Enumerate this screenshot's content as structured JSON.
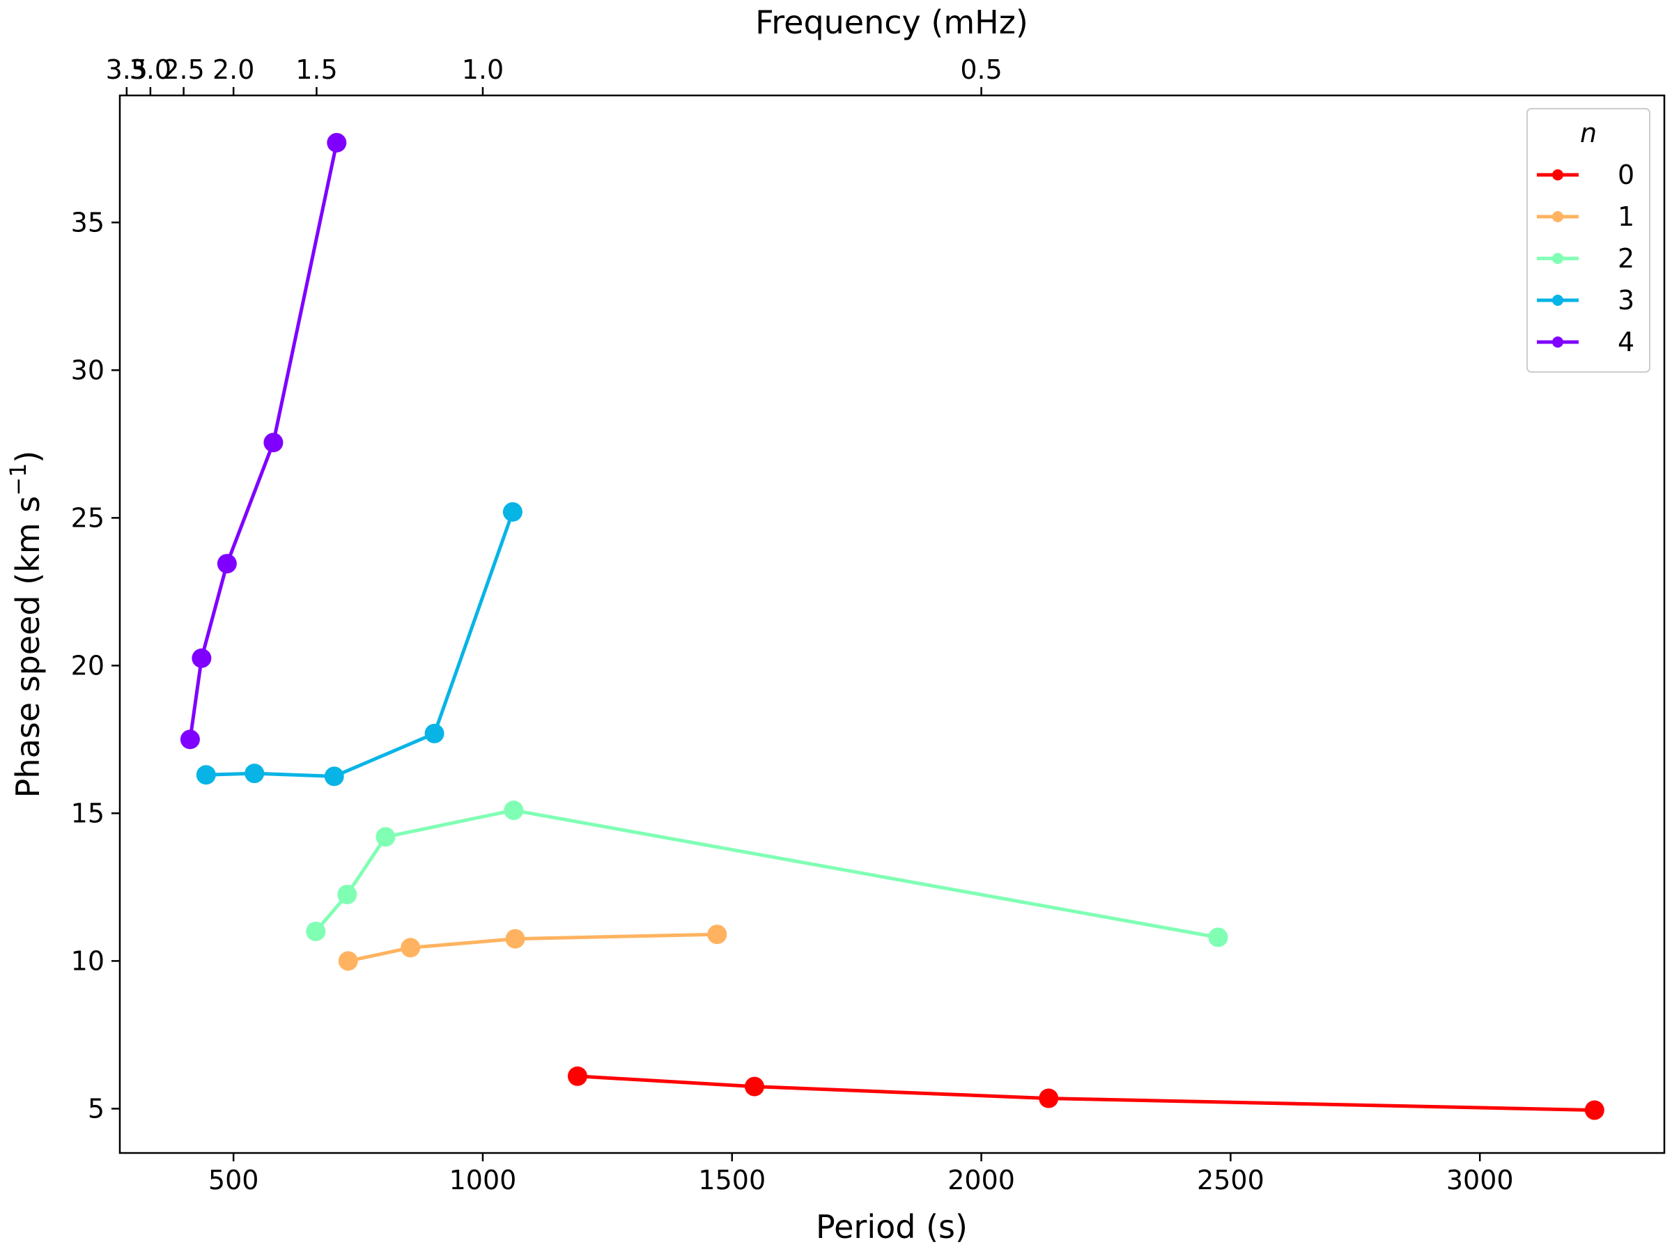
{
  "chart_data": {
    "type": "line",
    "title": "",
    "xlabel": "Period (s)",
    "ylabel_main": "Phase speed (km s",
    "ylabel_sup": "−1",
    "ylabel_close": ")",
    "top_xlabel": "Frequency (mHz)",
    "xlim": [
      272,
      3370
    ],
    "ylim": [
      3.5,
      39.3
    ],
    "x_ticks": [
      500,
      1000,
      1500,
      2000,
      2500,
      3000
    ],
    "y_ticks": [
      5,
      10,
      15,
      20,
      25,
      30,
      35
    ],
    "top_ticks": [
      {
        "label": "3.5",
        "freq_mhz": 3.5
      },
      {
        "label": "3.0",
        "freq_mhz": 3.0
      },
      {
        "label": "2.5",
        "freq_mhz": 2.5
      },
      {
        "label": "2.0",
        "freq_mhz": 2.0
      },
      {
        "label": "1.5",
        "freq_mhz": 1.5
      },
      {
        "label": "1.0",
        "freq_mhz": 1.0
      },
      {
        "label": "0.5",
        "freq_mhz": 0.5
      }
    ],
    "legend_title": "n",
    "legend_position": "top-right",
    "grid": false,
    "series": [
      {
        "name": "0",
        "color": "#ff0000",
        "x": [
          1190,
          1545,
          2135,
          3230
        ],
        "y": [
          6.1,
          5.75,
          5.35,
          4.95
        ]
      },
      {
        "name": "1",
        "color": "#ffb360",
        "x": [
          730,
          855,
          1065,
          1470
        ],
        "y": [
          10.0,
          10.45,
          10.75,
          10.9
        ]
      },
      {
        "name": "2",
        "color": "#80ffb4",
        "x": [
          665,
          728,
          805,
          1062,
          2475
        ],
        "y": [
          11.0,
          12.25,
          14.2,
          15.1,
          10.8
        ]
      },
      {
        "name": "3",
        "color": "#08b4e6",
        "x": [
          445,
          542,
          702,
          903,
          1060
        ],
        "y": [
          16.3,
          16.35,
          16.25,
          17.7,
          25.2
        ]
      },
      {
        "name": "4",
        "color": "#7f00ff",
        "x": [
          413,
          436,
          487,
          580,
          707
        ],
        "y": [
          17.5,
          20.25,
          23.45,
          27.55,
          37.7
        ]
      }
    ]
  }
}
